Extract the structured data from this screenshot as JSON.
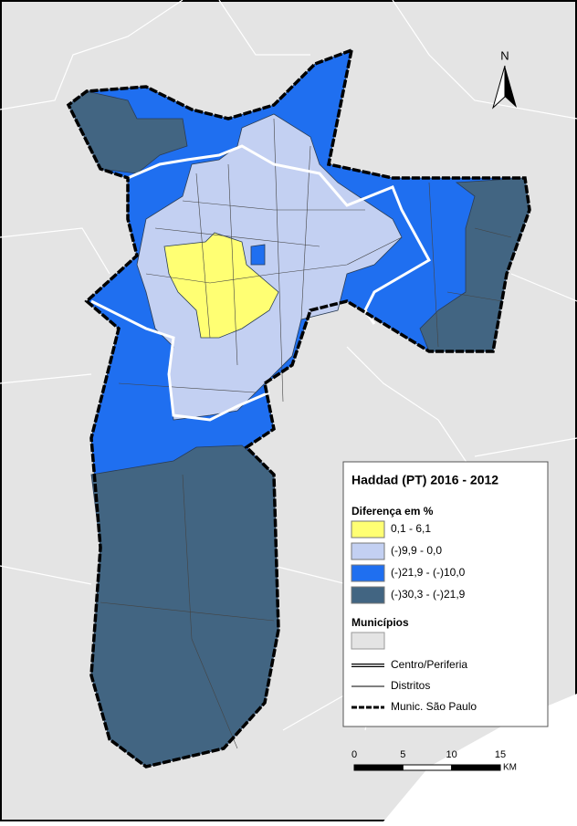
{
  "north_arrow": "N",
  "legend": {
    "title": "Haddad (PT) 2016 - 2012",
    "subtitle": "Diferença em %",
    "classes": [
      {
        "label": "0,1 - 6,1",
        "color": "#ffff73"
      },
      {
        "label": "(-)9,9 - 0,0",
        "color": "#c3d0f2"
      },
      {
        "label": "(-)21,9 - (-)10,0",
        "color": "#1f6ff0"
      },
      {
        "label": "(-)30,3 - (-)21,9",
        "color": "#426582"
      }
    ],
    "municipios": "Municípios",
    "lines": [
      "Centro/Periferia",
      "Distritos",
      "Munic. São Paulo"
    ]
  },
  "scale_bar": {
    "ticks": [
      0,
      5,
      10,
      15
    ],
    "unit": "KM"
  }
}
